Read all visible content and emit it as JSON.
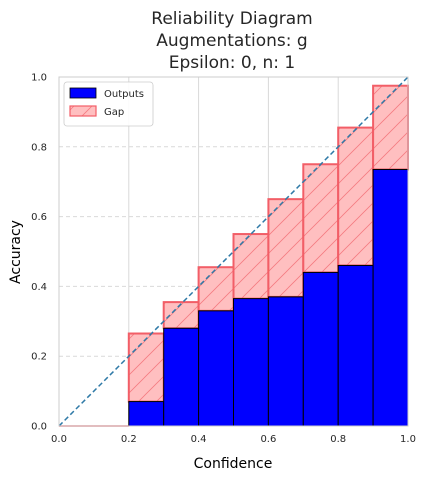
{
  "chart_data": {
    "type": "bar",
    "title_lines": [
      "Reliability Diagram",
      "Augmentations: g",
      "Epsilon: 0, n: 1"
    ],
    "xlabel": "Confidence",
    "ylabel": "Accuracy",
    "xlim": [
      0,
      1
    ],
    "ylim": [
      0,
      1
    ],
    "x_ticks": [
      "0.0",
      "0.2",
      "0.4",
      "0.6",
      "0.8",
      "1.0"
    ],
    "y_ticks": [
      "0.0",
      "0.2",
      "0.4",
      "0.6",
      "0.8",
      "1.0"
    ],
    "grid": true,
    "legend_position": "top-left",
    "legend": [
      "Outputs",
      "Gap"
    ],
    "bin_edges": [
      0.0,
      0.1,
      0.2,
      0.3,
      0.4,
      0.5,
      0.6,
      0.7,
      0.8,
      0.9,
      1.0
    ],
    "series": [
      {
        "name": "Outputs",
        "values": [
          0,
          0,
          0.07,
          0.28,
          0.33,
          0.365,
          0.37,
          0.44,
          0.46,
          0.735
        ]
      },
      {
        "name": "Gap",
        "values": [
          0,
          0,
          0.265,
          0.355,
          0.455,
          0.55,
          0.65,
          0.75,
          0.855,
          0.975
        ]
      }
    ],
    "colors": {
      "outputs_fill": "#0000ff",
      "outputs_edge": "#000000",
      "gap_fill": "#ffbfc0",
      "gap_edge": "#f25e67",
      "diagonal": "#2f7aa7",
      "grid": "#d9d9d9"
    }
  }
}
